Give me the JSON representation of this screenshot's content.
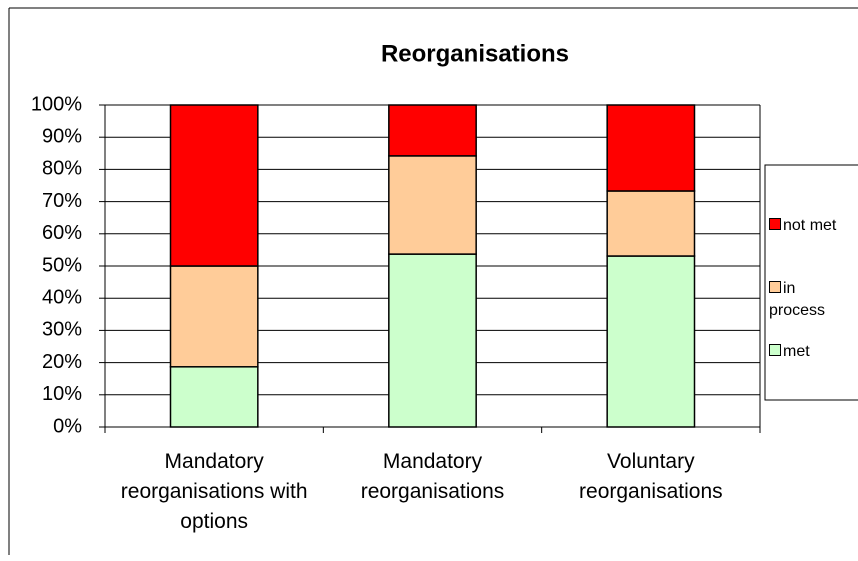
{
  "chart_data": {
    "type": "stacked_bar",
    "title": "Reorganisations",
    "categories": [
      "Mandatory reorganisations with options",
      "Mandatory reorganisations",
      "Voluntary reorganisations"
    ],
    "series": [
      {
        "name": "met",
        "color": "#ccffcc",
        "values": [
          18.7,
          53.7,
          53.1
        ]
      },
      {
        "name": "in process",
        "color": "#ffcc99",
        "values": [
          31.3,
          30.5,
          20.2
        ]
      },
      {
        "name": "not met",
        "color": "#ff0000",
        "values": [
          50,
          15.8,
          26.7
        ]
      }
    ],
    "ylim": [
      0,
      100
    ],
    "yticks": [
      {
        "value": 0,
        "label": "0%"
      },
      {
        "value": 10,
        "label": "10%"
      },
      {
        "value": 20,
        "label": "20%"
      },
      {
        "value": 30,
        "label": "30%"
      },
      {
        "value": 40,
        "label": "40%"
      },
      {
        "value": 50,
        "label": "50%"
      },
      {
        "value": 60,
        "label": "60%"
      },
      {
        "value": 70,
        "label": "70%"
      },
      {
        "value": 80,
        "label": "80%"
      },
      {
        "value": 90,
        "label": "90%"
      },
      {
        "value": 100,
        "label": "100%"
      }
    ],
    "grid": true,
    "legend": "right"
  }
}
